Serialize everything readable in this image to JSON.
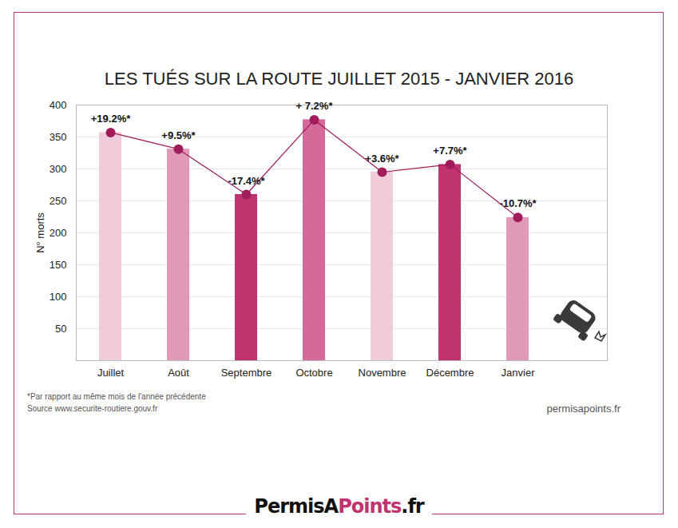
{
  "chart_data": {
    "type": "bar",
    "title": "LES TUÉS SUR LA ROUTE JUILLET 2015 - JANVIER 2016",
    "y_label": "N° morts",
    "categories": [
      "Juillet",
      "Août",
      "Septembre",
      "Octobre",
      "Novembre",
      "Décembre",
      "Janvier"
    ],
    "series": [
      {
        "type": "bar",
        "values": [
          357,
          331,
          260,
          377,
          295,
          307,
          224
        ],
        "colors": [
          "#f0cbd9",
          "#e09ab8",
          "#c0336f",
          "#d4699a",
          "#f0cbd9",
          "#c0336f",
          "#e09ab8"
        ]
      },
      {
        "type": "line",
        "values": [
          357,
          331,
          260,
          377,
          295,
          307,
          224
        ],
        "color": "#a01c5a",
        "marker": "circle"
      }
    ],
    "annotations": [
      "+19.2%*",
      "+9.5%*",
      "-17.4%*",
      "+ 7.2%*",
      "+3.6%*",
      "+7.7%*",
      "-10.7%*"
    ],
    "ylim": [
      0,
      400
    ],
    "yticks": [
      50,
      100,
      150,
      200,
      250,
      300,
      350,
      400
    ],
    "grid": true,
    "footnote": "*Par rapport au même mois de l'année précédente",
    "source": "Source www.securite-routiere.gouv.fr",
    "credit": "permisapoints.fr",
    "logo": [
      "Permis",
      "A",
      "Points",
      ".fr"
    ]
  }
}
